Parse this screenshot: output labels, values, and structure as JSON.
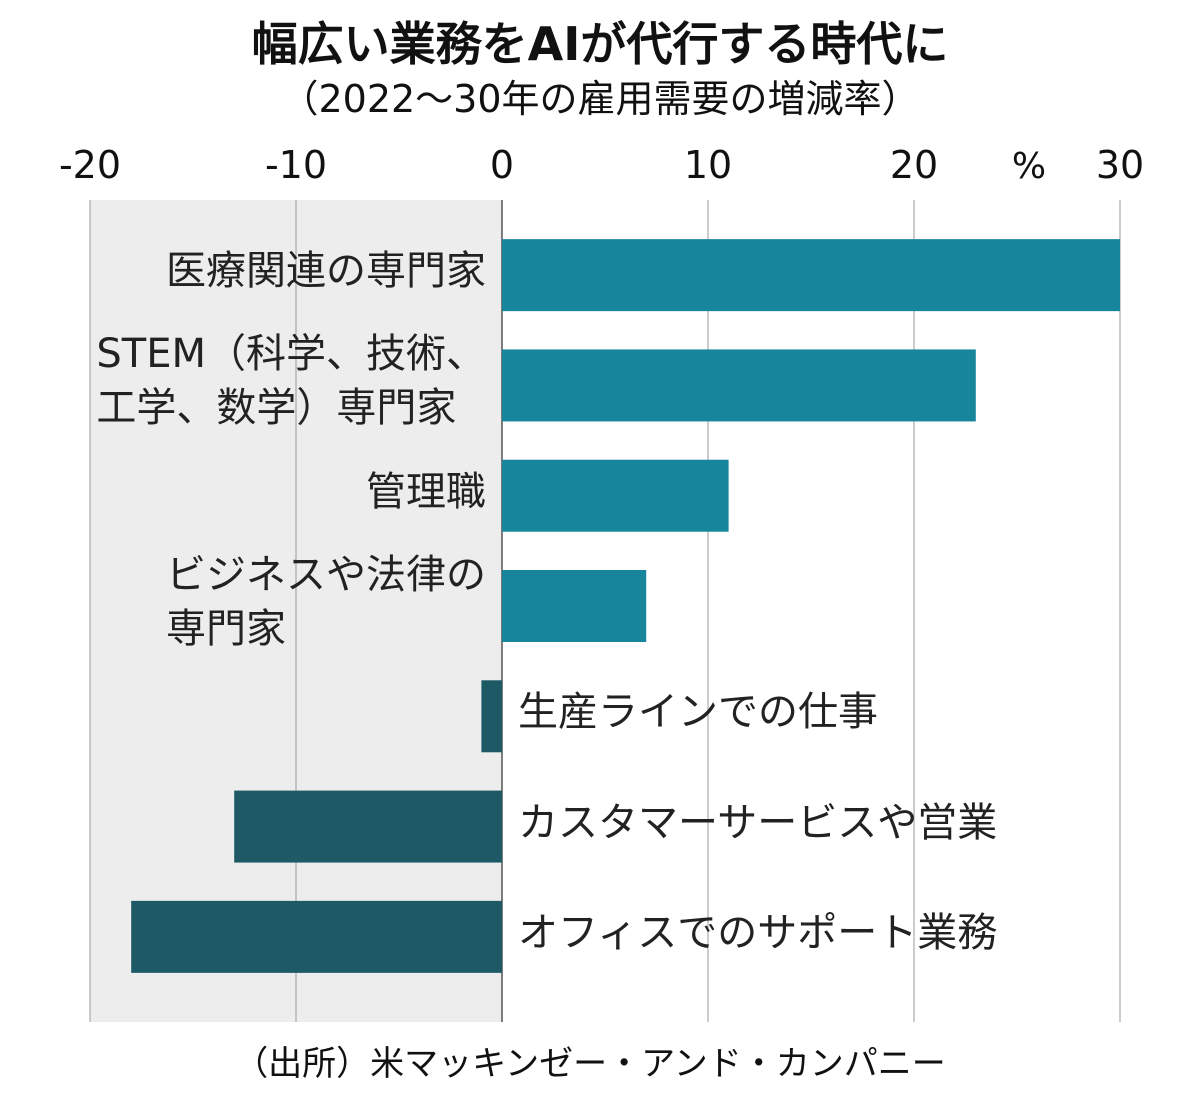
{
  "chart_data": {
    "type": "bar",
    "orientation": "horizontal",
    "title": "幅広い業務をAIが代行する時代に",
    "subtitle": "（2022～30年の雇用需要の増減率）",
    "unit_label": "%",
    "categories": [
      "医療関連の専門家",
      "STEM（科学、技術、\n工学、数学）専門家",
      "管理職",
      "ビジネスや法律の\n専門家",
      "生産ラインでの仕事",
      "カスタマーサービスや営業",
      "オフィスでのサポート業務"
    ],
    "values": [
      30,
      23,
      11,
      7,
      -1,
      -13,
      -18
    ],
    "colors": [
      "#17869c",
      "#17869c",
      "#17869c",
      "#17869c",
      "#1d5a66",
      "#1d5a66",
      "#1d5a66"
    ],
    "xlim": [
      -20,
      30
    ],
    "xticks": [
      -20,
      -10,
      0,
      10,
      20,
      30
    ],
    "grid": true,
    "source": "（出所）米マッキンゼー・アンド・カンパニー"
  }
}
